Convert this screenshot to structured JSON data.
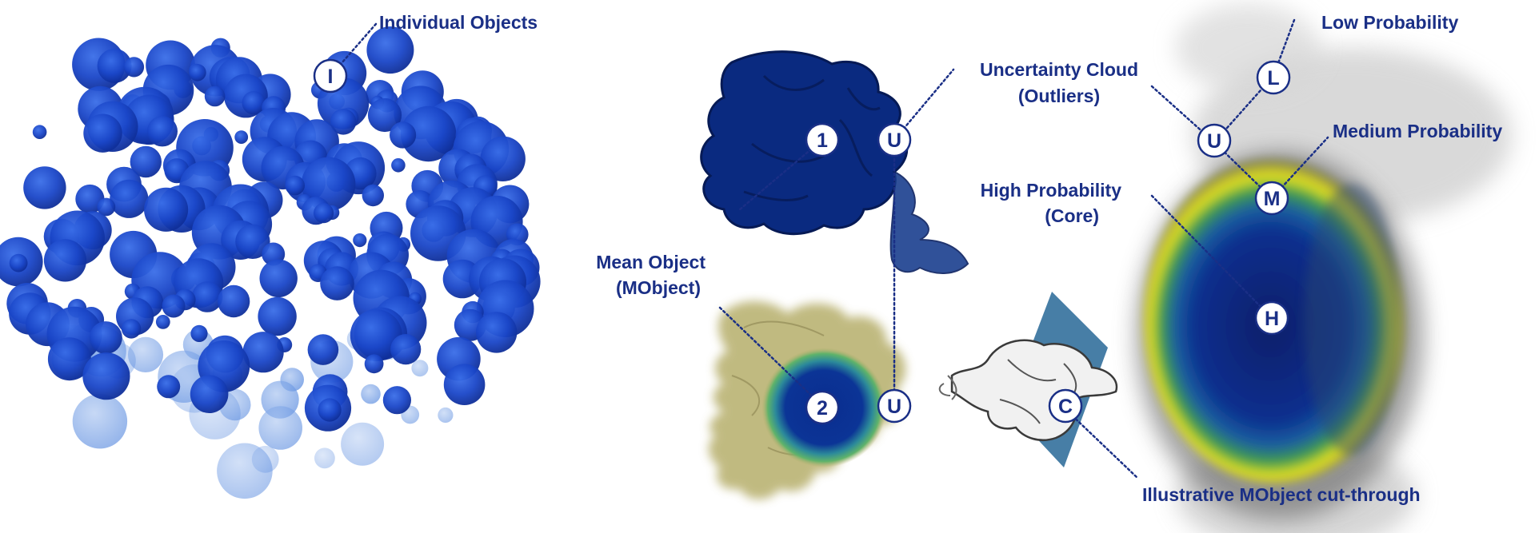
{
  "labels": {
    "individual_objects": "Individual Objects",
    "uncertainty_cloud_1": "Uncertainty Cloud",
    "uncertainty_cloud_2": "(Outliers)",
    "mean_object_1": "Mean Object",
    "mean_object_2": "(MObject)",
    "low_probability": "Low Probability",
    "medium_probability": "Medium Probability",
    "high_probability_1": "High Probability",
    "high_probability_2": "(Core)",
    "cut_through": "Illustrative MObject cut-through"
  },
  "markers": {
    "individual": "I",
    "mobject_1": "1",
    "mobject_2": "2",
    "uncertainty_top": "U",
    "uncertainty_bottom": "U",
    "uncertainty_right": "U",
    "low": "L",
    "medium": "M",
    "high": "H",
    "cut": "C"
  },
  "colors": {
    "label_text": "#1a2f86",
    "mobject_blue": "#0a2a80",
    "object_blue": "#1a46c8",
    "cloud_olive": "#b6ae6a",
    "halo_yellow": "#e8e320",
    "halo_green": "#3f9d4a",
    "cloud_grey": "#9a9a9a",
    "plane_blue": "#2e6c9a"
  }
}
